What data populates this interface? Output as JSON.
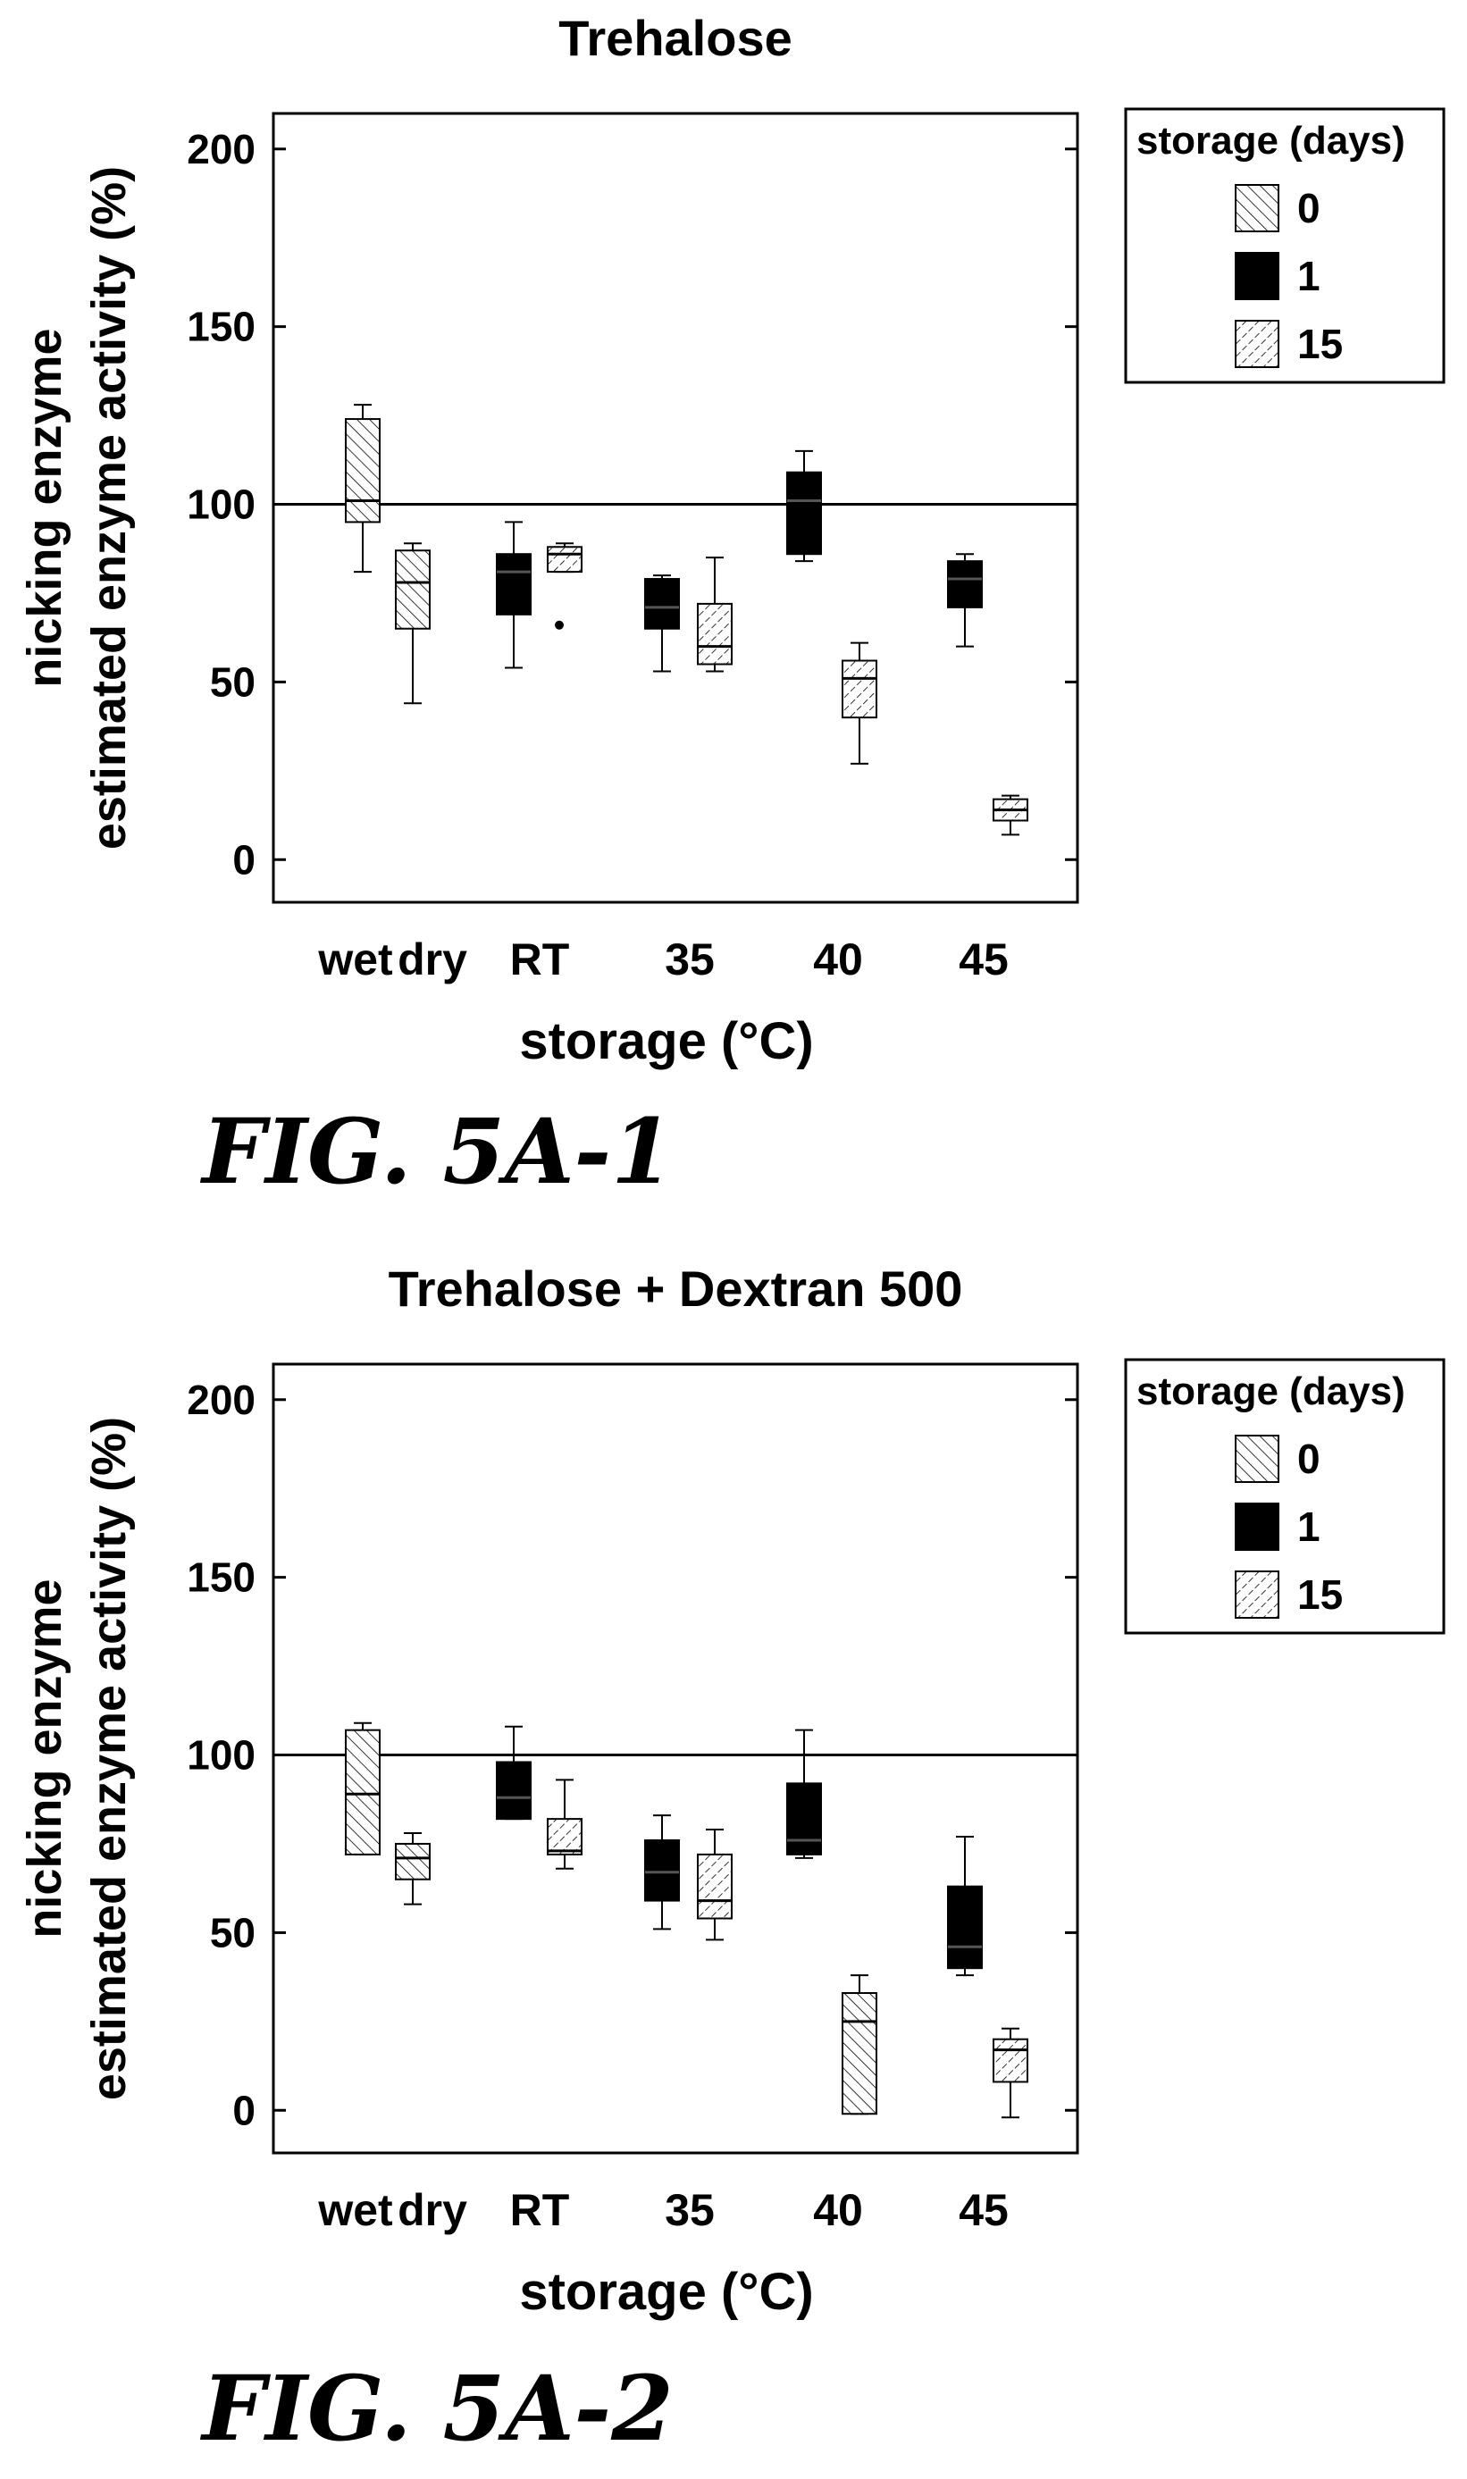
{
  "chart_data": [
    {
      "type": "box",
      "title": "Trehalose",
      "xlabel": "storage (°C)",
      "ylabel_lines": [
        "nicking enzyme",
        "estimated enzyme activity (%)"
      ],
      "ylim": [
        -12,
        210
      ],
      "yticks": [
        0,
        50,
        100,
        150,
        200
      ],
      "reference_line": 100,
      "categories": [
        "wet",
        "dry",
        "RT",
        "35",
        "40",
        "45"
      ],
      "legend": {
        "title": "storage (days)",
        "position": "top-right, outside plot",
        "entries": [
          {
            "label": "0",
            "pattern": "hatch-forward"
          },
          {
            "label": "1",
            "pattern": "solid-black"
          },
          {
            "label": "15",
            "pattern": "hatch-back"
          }
        ]
      },
      "boxes": [
        {
          "category": "wet",
          "days": "0",
          "pattern": "hatch-forward",
          "whisker_low": 81,
          "q1": 95,
          "median": 101,
          "q3": 124,
          "whisker_high": 128,
          "outliers": []
        },
        {
          "category": "dry",
          "days": "0",
          "pattern": "hatch-forward",
          "whisker_low": 44,
          "q1": 65,
          "median": 78,
          "q3": 87,
          "whisker_high": 89,
          "outliers": []
        },
        {
          "category": "RT",
          "days": "1",
          "pattern": "solid-black",
          "whisker_low": 54,
          "q1": 69,
          "median": 81,
          "q3": 86,
          "whisker_high": 95,
          "outliers": []
        },
        {
          "category": "RT",
          "days": "15",
          "pattern": "hatch-back",
          "whisker_low": 81,
          "q1": 81,
          "median": 86,
          "q3": 88,
          "whisker_high": 89,
          "outliers": [
            66
          ]
        },
        {
          "category": "35",
          "days": "1",
          "pattern": "solid-black",
          "whisker_low": 53,
          "q1": 65,
          "median": 71,
          "q3": 79,
          "whisker_high": 80,
          "outliers": []
        },
        {
          "category": "35",
          "days": "15",
          "pattern": "hatch-back",
          "whisker_low": 53,
          "q1": 55,
          "median": 60,
          "q3": 72,
          "whisker_high": 85,
          "outliers": []
        },
        {
          "category": "40",
          "days": "1",
          "pattern": "solid-black",
          "whisker_low": 84,
          "q1": 86,
          "median": 101,
          "q3": 109,
          "whisker_high": 115,
          "outliers": []
        },
        {
          "category": "40",
          "days": "15",
          "pattern": "hatch-back",
          "whisker_low": 27,
          "q1": 40,
          "median": 51,
          "q3": 56,
          "whisker_high": 61,
          "outliers": []
        },
        {
          "category": "45",
          "days": "1",
          "pattern": "solid-black",
          "whisker_low": 60,
          "q1": 71,
          "median": 79,
          "q3": 84,
          "whisker_high": 86,
          "outliers": []
        },
        {
          "category": "45",
          "days": "15",
          "pattern": "hatch-back",
          "whisker_low": 7,
          "q1": 11,
          "median": 14,
          "q3": 17,
          "whisker_high": 18,
          "outliers": []
        }
      ]
    },
    {
      "type": "box",
      "title": "Trehalose + Dextran 500",
      "xlabel": "storage (°C)",
      "ylabel_lines": [
        "nicking enzyme",
        "estimated enzyme activity (%)"
      ],
      "ylim": [
        -12,
        210
      ],
      "yticks": [
        0,
        50,
        100,
        150,
        200
      ],
      "reference_line": 100,
      "categories": [
        "wet",
        "dry",
        "RT",
        "35",
        "40",
        "45"
      ],
      "legend": {
        "title": "storage (days)",
        "position": "top-right, outside plot",
        "entries": [
          {
            "label": "0",
            "pattern": "hatch-forward"
          },
          {
            "label": "1",
            "pattern": "solid-black"
          },
          {
            "label": "15",
            "pattern": "hatch-back"
          }
        ]
      },
      "boxes": [
        {
          "category": "wet",
          "days": "0",
          "pattern": "hatch-forward",
          "whisker_low": 72,
          "q1": 72,
          "median": 89,
          "q3": 107,
          "whisker_high": 109,
          "outliers": []
        },
        {
          "category": "dry",
          "days": "0",
          "pattern": "hatch-forward",
          "whisker_low": 58,
          "q1": 65,
          "median": 71,
          "q3": 75,
          "whisker_high": 78,
          "outliers": []
        },
        {
          "category": "RT",
          "days": "1",
          "pattern": "solid-black",
          "whisker_low": 82,
          "q1": 82,
          "median": 88,
          "q3": 98,
          "whisker_high": 108,
          "outliers": []
        },
        {
          "category": "RT",
          "days": "15",
          "pattern": "hatch-back",
          "whisker_low": 68,
          "q1": 72,
          "median": 73,
          "q3": 82,
          "whisker_high": 93,
          "outliers": []
        },
        {
          "category": "35",
          "days": "1",
          "pattern": "solid-black",
          "whisker_low": 51,
          "q1": 59,
          "median": 67,
          "q3": 76,
          "whisker_high": 83,
          "outliers": []
        },
        {
          "category": "35",
          "days": "15",
          "pattern": "hatch-back",
          "whisker_low": 48,
          "q1": 54,
          "median": 59,
          "q3": 72,
          "whisker_high": 79,
          "outliers": []
        },
        {
          "category": "40",
          "days": "1",
          "pattern": "solid-black",
          "whisker_low": 71,
          "q1": 72,
          "median": 76,
          "q3": 92,
          "whisker_high": 107,
          "outliers": []
        },
        {
          "category": "40",
          "days": "15",
          "pattern": "hatch-forward",
          "whisker_low": -1,
          "q1": -1,
          "median": 25,
          "q3": 33,
          "whisker_high": 38,
          "outliers": []
        },
        {
          "category": "45",
          "days": "1",
          "pattern": "solid-black",
          "whisker_low": 38,
          "q1": 40,
          "median": 46,
          "q3": 63,
          "whisker_high": 77,
          "outliers": []
        },
        {
          "category": "45",
          "days": "15",
          "pattern": "hatch-back",
          "whisker_low": -2,
          "q1": 8,
          "median": 17,
          "q3": 20,
          "whisker_high": 23,
          "outliers": []
        }
      ]
    }
  ],
  "captions": [
    "FIG. 5A-1",
    "FIG. 5A-2"
  ]
}
